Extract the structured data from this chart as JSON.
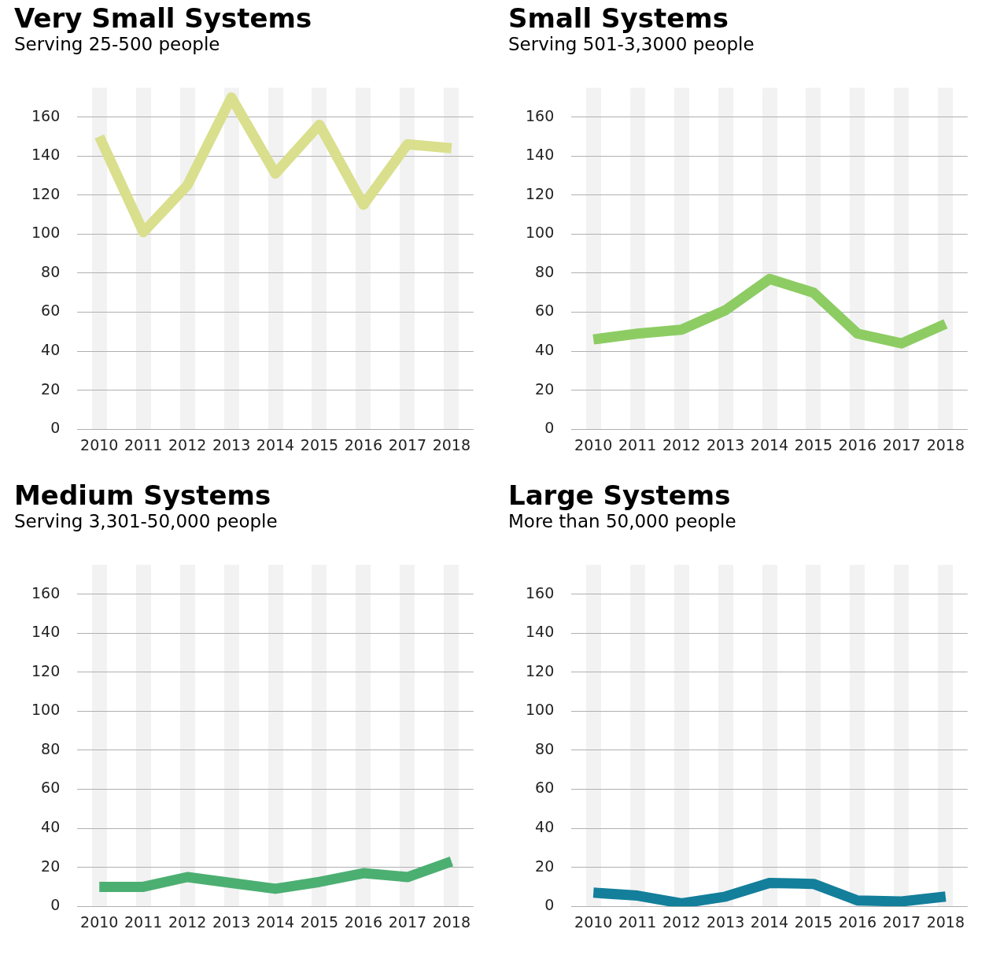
{
  "chart_data": [
    {
      "type": "line",
      "title": "Very Small Systems",
      "subtitle": "Serving 25-500 people",
      "categories": [
        "2010",
        "2011",
        "2012",
        "2013",
        "2014",
        "2015",
        "2016",
        "2017",
        "2018"
      ],
      "color": "#d9df8c",
      "values": [
        150,
        101,
        125,
        170,
        131,
        156,
        115,
        146,
        144
      ],
      "ylim": [
        0,
        175
      ],
      "yticks": [
        0,
        20,
        40,
        60,
        80,
        100,
        120,
        140,
        160
      ],
      "grid": true,
      "marker": "none"
    },
    {
      "type": "line",
      "title": "Small Systems",
      "subtitle": "Serving 501-3,3000 people",
      "categories": [
        "2010",
        "2011",
        "2012",
        "2013",
        "2014",
        "2015",
        "2016",
        "2017",
        "2018"
      ],
      "color": "#8dcc63",
      "values": [
        46,
        49,
        51,
        61,
        77,
        70,
        49,
        44,
        54
      ],
      "ylim": [
        0,
        175
      ],
      "yticks": [
        0,
        20,
        40,
        60,
        80,
        100,
        120,
        140,
        160
      ],
      "grid": true,
      "marker": "none"
    },
    {
      "type": "line",
      "title": "Medium Systems",
      "subtitle": "Serving 3,301-50,000 people",
      "categories": [
        "2010",
        "2011",
        "2012",
        "2013",
        "2014",
        "2015",
        "2016",
        "2017",
        "2018"
      ],
      "color": "#4caf72",
      "values": [
        10,
        10,
        15,
        12,
        9,
        12.5,
        17,
        15,
        23
      ],
      "ylim": [
        0,
        175
      ],
      "yticks": [
        0,
        20,
        40,
        60,
        80,
        100,
        120,
        140,
        160
      ],
      "grid": true,
      "marker": "none"
    },
    {
      "type": "line",
      "title": "Large Systems",
      "subtitle": "More than 50,000 people",
      "categories": [
        "2010",
        "2011",
        "2012",
        "2013",
        "2014",
        "2015",
        "2016",
        "2017",
        "2018"
      ],
      "color": "#137f9b",
      "values": [
        7,
        5.5,
        1.5,
        5,
        12,
        11.5,
        3,
        2.5,
        5
      ],
      "ylim": [
        0,
        175
      ],
      "yticks": [
        0,
        20,
        40,
        60,
        80,
        100,
        120,
        140,
        160
      ],
      "grid": true,
      "marker": "none"
    }
  ]
}
